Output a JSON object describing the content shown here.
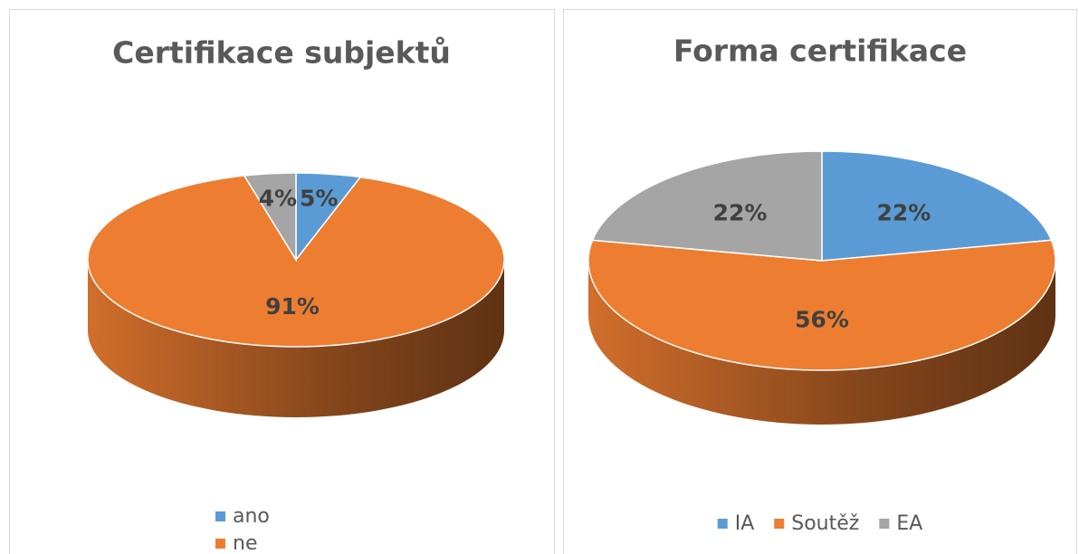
{
  "chart_data": [
    {
      "type": "pie",
      "title": "Certifikace subjektů",
      "categories": [
        "ano",
        "ne",
        null
      ],
      "values": [
        5,
        91,
        4
      ],
      "value_labels": [
        "5%",
        "91%",
        "4%"
      ],
      "colors": [
        "#5b9bd5",
        "#ed7d31",
        "#a5a5a5"
      ],
      "legend": "bottom"
    },
    {
      "type": "pie",
      "title": "Forma certifikace",
      "categories": [
        "IA",
        "Soutěž",
        "EA"
      ],
      "values": [
        22,
        56,
        22
      ],
      "value_labels": [
        "22%",
        "56%",
        "22%"
      ],
      "colors": [
        "#5b9bd5",
        "#ed7d31",
        "#a5a5a5"
      ],
      "legend": "bottom"
    }
  ]
}
